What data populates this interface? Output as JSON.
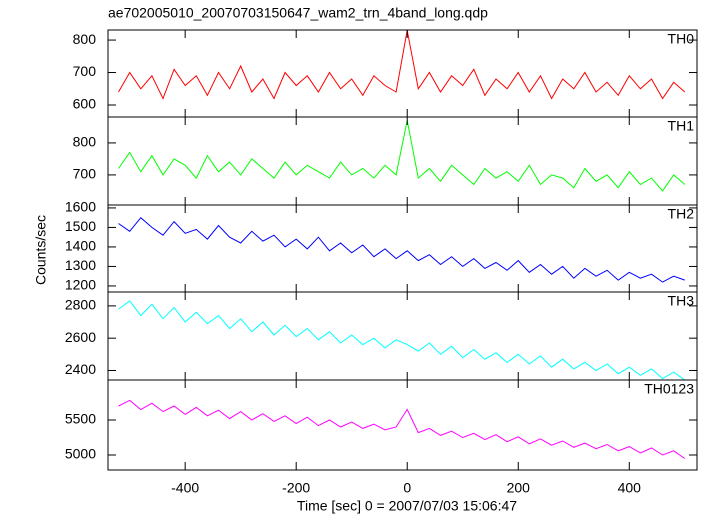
{
  "chart_data": [
    {
      "type": "line",
      "title": "ae702005010_20070703150647_wam2_trn_4band_long.qdp",
      "xlim": [
        -539,
        522
      ],
      "ylim": [
        563,
        831
      ],
      "yticks": [
        600,
        700,
        800
      ],
      "x": [
        -520,
        -500,
        -480,
        -460,
        -440,
        -420,
        -400,
        -380,
        -360,
        -340,
        -320,
        -300,
        -280,
        -260,
        -240,
        -220,
        -200,
        -180,
        -160,
        -140,
        -120,
        -100,
        -80,
        -60,
        -40,
        -20,
        0,
        20,
        40,
        60,
        80,
        100,
        120,
        140,
        160,
        180,
        200,
        220,
        240,
        260,
        280,
        300,
        320,
        340,
        360,
        380,
        400,
        420,
        440,
        460,
        480,
        500
      ],
      "series": [
        {
          "name": "TH0",
          "color": "#ff0000",
          "values": [
            640,
            700,
            650,
            690,
            620,
            710,
            660,
            690,
            630,
            700,
            650,
            720,
            640,
            680,
            620,
            700,
            660,
            690,
            640,
            700,
            650,
            680,
            630,
            690,
            660,
            640,
            830,
            650,
            700,
            640,
            690,
            660,
            710,
            630,
            680,
            650,
            700,
            640,
            690,
            620,
            680,
            650,
            700,
            640,
            670,
            630,
            690,
            650,
            680,
            620,
            670,
            640
          ]
        }
      ]
    },
    {
      "type": "line",
      "xlim": [
        -539,
        522
      ],
      "ylim": [
        606,
        881
      ],
      "yticks": [
        700,
        800
      ],
      "x": [
        -520,
        -500,
        -480,
        -460,
        -440,
        -420,
        -400,
        -380,
        -360,
        -340,
        -320,
        -300,
        -280,
        -260,
        -240,
        -220,
        -200,
        -180,
        -160,
        -140,
        -120,
        -100,
        -80,
        -60,
        -40,
        -20,
        0,
        20,
        40,
        60,
        80,
        100,
        120,
        140,
        160,
        180,
        200,
        220,
        240,
        260,
        280,
        300,
        320,
        340,
        360,
        380,
        400,
        420,
        440,
        460,
        480,
        500
      ],
      "series": [
        {
          "name": "TH1",
          "color": "#00ff00",
          "values": [
            720,
            770,
            710,
            760,
            700,
            750,
            730,
            690,
            760,
            710,
            740,
            700,
            750,
            720,
            690,
            740,
            700,
            730,
            710,
            690,
            740,
            700,
            720,
            690,
            730,
            700,
            870,
            690,
            720,
            680,
            730,
            700,
            670,
            720,
            690,
            710,
            680,
            730,
            670,
            700,
            690,
            660,
            720,
            680,
            700,
            660,
            710,
            670,
            690,
            650,
            700,
            670
          ]
        }
      ]
    },
    {
      "type": "line",
      "ylabel": "Counts/sec",
      "xlim": [
        -539,
        522
      ],
      "ylim": [
        1169,
        1615
      ],
      "yticks": [
        1200,
        1300,
        1400,
        1500,
        1600
      ],
      "x": [
        -520,
        -500,
        -480,
        -460,
        -440,
        -420,
        -400,
        -380,
        -360,
        -340,
        -320,
        -300,
        -280,
        -260,
        -240,
        -220,
        -200,
        -180,
        -160,
        -140,
        -120,
        -100,
        -80,
        -60,
        -40,
        -20,
        0,
        20,
        40,
        60,
        80,
        100,
        120,
        140,
        160,
        180,
        200,
        220,
        240,
        260,
        280,
        300,
        320,
        340,
        360,
        380,
        400,
        420,
        440,
        460,
        480,
        500
      ],
      "series": [
        {
          "name": "TH2",
          "color": "#0000ff",
          "values": [
            1520,
            1480,
            1550,
            1500,
            1460,
            1530,
            1470,
            1490,
            1440,
            1510,
            1450,
            1420,
            1480,
            1430,
            1460,
            1400,
            1440,
            1390,
            1450,
            1380,
            1420,
            1370,
            1410,
            1350,
            1390,
            1340,
            1380,
            1330,
            1360,
            1310,
            1350,
            1300,
            1340,
            1290,
            1320,
            1280,
            1330,
            1270,
            1310,
            1260,
            1300,
            1240,
            1290,
            1250,
            1280,
            1230,
            1270,
            1240,
            1260,
            1220,
            1250,
            1230
          ]
        }
      ]
    },
    {
      "type": "line",
      "xlim": [
        -539,
        522
      ],
      "ylim": [
        2341,
        2886
      ],
      "yticks": [
        2400,
        2600,
        2800
      ],
      "x": [
        -520,
        -500,
        -480,
        -460,
        -440,
        -420,
        -400,
        -380,
        -360,
        -340,
        -320,
        -300,
        -280,
        -260,
        -240,
        -220,
        -200,
        -180,
        -160,
        -140,
        -120,
        -100,
        -80,
        -60,
        -40,
        -20,
        0,
        20,
        40,
        60,
        80,
        100,
        120,
        140,
        160,
        180,
        200,
        220,
        240,
        260,
        280,
        300,
        320,
        340,
        360,
        380,
        400,
        420,
        440,
        460,
        480,
        500
      ],
      "series": [
        {
          "name": "TH3",
          "color": "#00ffff",
          "values": [
            2780,
            2830,
            2740,
            2810,
            2720,
            2790,
            2700,
            2760,
            2690,
            2740,
            2660,
            2720,
            2640,
            2700,
            2620,
            2680,
            2610,
            2660,
            2590,
            2640,
            2570,
            2620,
            2560,
            2600,
            2540,
            2590,
            2560,
            2520,
            2570,
            2500,
            2550,
            2480,
            2530,
            2470,
            2510,
            2450,
            2500,
            2440,
            2490,
            2420,
            2470,
            2410,
            2450,
            2400,
            2440,
            2380,
            2420,
            2370,
            2410,
            2350,
            2390,
            2340
          ]
        }
      ]
    },
    {
      "type": "line",
      "xlabel": "Time [sec] 0 = 2007/07/03 15:06:47",
      "xlim": [
        -539,
        522
      ],
      "xticks": [
        -400,
        -200,
        0,
        200,
        400
      ],
      "ylim": [
        4786,
        6071
      ],
      "yticks": [
        5000,
        5500
      ],
      "x": [
        -520,
        -500,
        -480,
        -460,
        -440,
        -420,
        -400,
        -380,
        -360,
        -340,
        -320,
        -300,
        -280,
        -260,
        -240,
        -220,
        -200,
        -180,
        -160,
        -140,
        -120,
        -100,
        -80,
        -60,
        -40,
        -20,
        0,
        20,
        40,
        60,
        80,
        100,
        120,
        140,
        160,
        180,
        200,
        220,
        240,
        260,
        280,
        300,
        320,
        340,
        360,
        380,
        400,
        420,
        440,
        460,
        480,
        500
      ],
      "series": [
        {
          "name": "TH0123",
          "color": "#ff00ff",
          "values": [
            5700,
            5780,
            5650,
            5740,
            5620,
            5700,
            5580,
            5680,
            5560,
            5640,
            5520,
            5620,
            5500,
            5590,
            5480,
            5560,
            5450,
            5540,
            5420,
            5500,
            5400,
            5470,
            5380,
            5440,
            5360,
            5400,
            5650,
            5320,
            5380,
            5280,
            5340,
            5250,
            5310,
            5220,
            5290,
            5190,
            5260,
            5160,
            5230,
            5140,
            5200,
            5110,
            5170,
            5090,
            5150,
            5060,
            5120,
            5030,
            5100,
            5000,
            5060,
            4950
          ]
        }
      ]
    }
  ]
}
